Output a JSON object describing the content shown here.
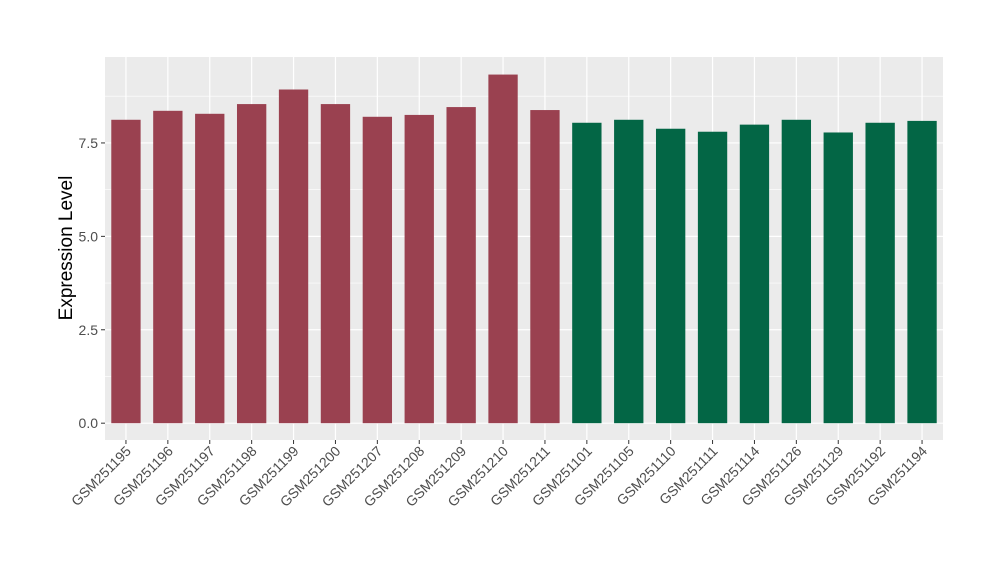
{
  "chart_data": {
    "type": "bar",
    "title": "",
    "xlabel": "",
    "ylabel": "Expression Level",
    "ylim": [
      -0.45,
      9.8
    ],
    "yticks": [
      0.0,
      2.5,
      5.0,
      7.5
    ],
    "ytick_labels": [
      "0.0",
      "2.5",
      "5.0",
      "7.5"
    ],
    "grid": true,
    "legend": "none",
    "categories": [
      "GSM251195",
      "GSM251196",
      "GSM251197",
      "GSM251198",
      "GSM251199",
      "GSM251200",
      "GSM251207",
      "GSM251208",
      "GSM251209",
      "GSM251210",
      "GSM251211",
      "GSM251101",
      "GSM251105",
      "GSM251110",
      "GSM251111",
      "GSM251114",
      "GSM251126",
      "GSM251129",
      "GSM251192",
      "GSM251194"
    ],
    "values": [
      8.12,
      8.36,
      8.28,
      8.54,
      8.93,
      8.54,
      8.2,
      8.25,
      8.46,
      9.33,
      8.38,
      8.04,
      8.12,
      7.88,
      7.8,
      7.99,
      8.12,
      7.78,
      8.04,
      8.09
    ],
    "bar_colors": [
      "#9a4150",
      "#9a4150",
      "#9a4150",
      "#9a4150",
      "#9a4150",
      "#9a4150",
      "#9a4150",
      "#9a4150",
      "#9a4150",
      "#9a4150",
      "#9a4150",
      "#036645",
      "#036645",
      "#036645",
      "#036645",
      "#036645",
      "#036645",
      "#036645",
      "#036645",
      "#036645"
    ],
    "panel_background": "#ebebeb",
    "grid_color": "#ffffff"
  }
}
